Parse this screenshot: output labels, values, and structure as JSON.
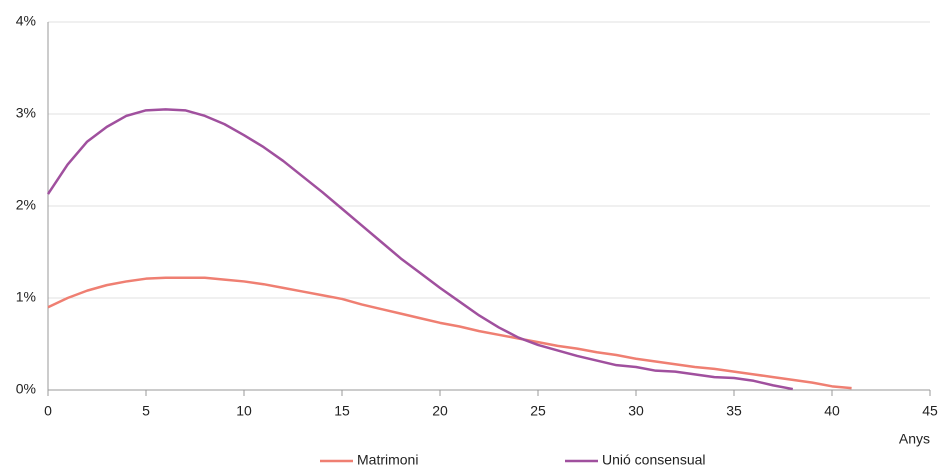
{
  "chart_data": {
    "type": "line",
    "x_label": "Anys",
    "x": [
      0,
      1,
      2,
      3,
      4,
      5,
      6,
      7,
      8,
      9,
      10,
      11,
      12,
      13,
      14,
      15,
      16,
      17,
      18,
      19,
      20,
      21,
      22,
      23,
      24,
      25,
      26,
      27,
      28,
      29,
      30,
      31,
      32,
      33,
      34,
      35,
      36,
      37,
      38,
      39,
      40,
      41
    ],
    "series": [
      {
        "name": "Matrimoni",
        "color": "#ef7f72",
        "values": [
          0.9,
          1.0,
          1.08,
          1.14,
          1.18,
          1.21,
          1.22,
          1.22,
          1.22,
          1.2,
          1.18,
          1.15,
          1.11,
          1.07,
          1.03,
          0.99,
          0.93,
          0.88,
          0.83,
          0.78,
          0.73,
          0.69,
          0.64,
          0.6,
          0.56,
          0.52,
          0.48,
          0.45,
          0.41,
          0.38,
          0.34,
          0.31,
          0.28,
          0.25,
          0.23,
          0.2,
          0.17,
          0.14,
          0.11,
          0.08,
          0.04,
          0.02
        ]
      },
      {
        "name": "Unió consensual",
        "color": "#a0509e",
        "values": [
          2.13,
          2.45,
          2.7,
          2.86,
          2.98,
          3.04,
          3.05,
          3.04,
          2.98,
          2.89,
          2.77,
          2.64,
          2.49,
          2.32,
          2.15,
          1.97,
          1.79,
          1.61,
          1.43,
          1.27,
          1.11,
          0.96,
          0.81,
          0.68,
          0.57,
          0.49,
          0.43,
          0.37,
          0.32,
          0.27,
          0.25,
          0.21,
          0.2,
          0.17,
          0.14,
          0.13,
          0.1,
          0.05,
          0.01,
          null,
          null,
          null
        ]
      }
    ],
    "xlim": [
      0,
      45
    ],
    "xticks": [
      0,
      5,
      10,
      15,
      20,
      25,
      30,
      35,
      40,
      45
    ],
    "ylim": [
      0,
      4
    ],
    "yticks": [
      {
        "value": 0,
        "label": "0%"
      },
      {
        "value": 1,
        "label": "1%"
      },
      {
        "value": 2,
        "label": "2%"
      },
      {
        "value": 3,
        "label": "3%"
      },
      {
        "value": 4,
        "label": "4%"
      }
    ],
    "grid": true,
    "legend": "bottom"
  }
}
